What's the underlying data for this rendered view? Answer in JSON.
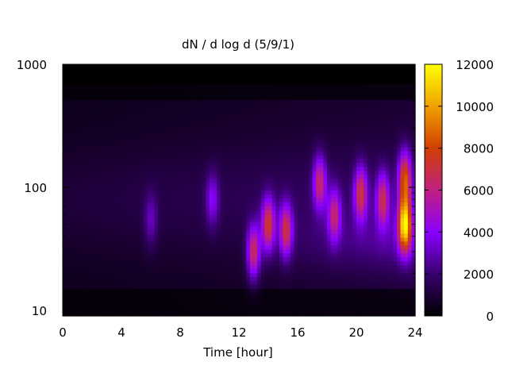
{
  "chart_data": {
    "type": "heatmap",
    "title": "dN / d log d (5/9/1)",
    "xlabel": "Time [hour]",
    "ylabel": "",
    "x_ticks": [
      "0",
      "4",
      "8",
      "12",
      "16",
      "20",
      "24"
    ],
    "y_ticks": [
      "10",
      "100",
      "1000"
    ],
    "xlim": [
      0,
      24
    ],
    "ylim": [
      9,
      1000
    ],
    "y_scale": "log",
    "colorbar": {
      "ticks": [
        "0",
        "2000",
        "4000",
        "6000",
        "8000",
        "10000",
        "12000"
      ],
      "range": [
        0,
        12000
      ],
      "colormap": [
        "#000000",
        "#3a0070",
        "#8a00ff",
        "#c02080",
        "#d04000",
        "#f0a000",
        "#ffff00"
      ]
    },
    "features": [
      {
        "t": 6.0,
        "d": 55,
        "value": 3500
      },
      {
        "t": 10.2,
        "d": 80,
        "value": 4200
      },
      {
        "t": 13.0,
        "d": 30,
        "value": 7000
      },
      {
        "t": 14.0,
        "d": 50,
        "value": 7500
      },
      {
        "t": 15.2,
        "d": 45,
        "value": 7000
      },
      {
        "t": 17.5,
        "d": 110,
        "value": 6500
      },
      {
        "t": 18.5,
        "d": 60,
        "value": 6000
      },
      {
        "t": 20.3,
        "d": 90,
        "value": 7000
      },
      {
        "t": 21.8,
        "d": 80,
        "value": 6500
      },
      {
        "t": 23.3,
        "d": 50,
        "value": 11000
      },
      {
        "t": 23.3,
        "d": 120,
        "value": 8000
      }
    ]
  }
}
